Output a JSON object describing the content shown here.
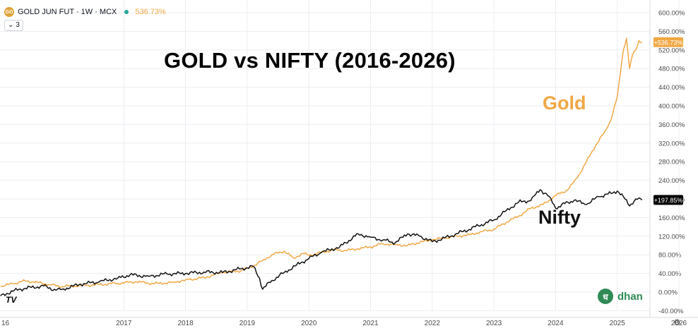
{
  "header": {
    "symbol": "GOLD JUN FUT · 1W · MCX",
    "change": "536.73%",
    "logo_text": "GO",
    "collapse_count": "3"
  },
  "colors": {
    "gold": "#f0a845",
    "nifty": "#131313",
    "grid": "#ebedf1",
    "axis_text": "#4a4a4a",
    "tag_gold": "#f0a845",
    "tag_nifty": "#000000",
    "brand_green": "#2f8a56"
  },
  "branding": {
    "tv_logo": "TV",
    "dhan_icon": "ध",
    "dhan_text": "dhan"
  },
  "chart_data": {
    "type": "line",
    "title": "GOLD vs NIFTY (2016-2026)",
    "x_tick_labels": [
      "16",
      "2017",
      "2018",
      "2019",
      "2020",
      "2021",
      "2022",
      "2023",
      "2024",
      "2025",
      "2026"
    ],
    "y_ticks": [
      -40,
      0,
      40,
      80,
      120,
      160,
      200,
      240,
      280,
      320,
      360,
      400,
      440,
      480,
      520,
      560,
      600
    ],
    "y_tick_labels": [
      "-40.00%",
      "0.00%",
      "40.00%",
      "80.00%",
      "120.00%",
      "160.00%",
      "200.00%",
      "240.00%",
      "280.00%",
      "320.00%",
      "360.00%",
      "400.00%",
      "440.00%",
      "480.00%",
      "520.00%",
      "560.00%",
      "600.00%"
    ],
    "ylim": [
      -50,
      610
    ],
    "xlim": [
      2016.0,
      2027.0
    ],
    "grid": true,
    "series": [
      {
        "name": "Gold",
        "last_label": "+536.73%",
        "x": [
          2016.0,
          2016.2,
          2016.4,
          2016.6,
          2016.8,
          2017.0,
          2017.3,
          2017.6,
          2017.9,
          2018.2,
          2018.5,
          2018.8,
          2019.0,
          2019.3,
          2019.6,
          2019.9,
          2020.1,
          2020.25,
          2020.4,
          2020.6,
          2020.75,
          2020.9,
          2021.0,
          2021.2,
          2021.4,
          2021.6,
          2021.8,
          2022.0,
          2022.2,
          2022.4,
          2022.6,
          2022.8,
          2023.0,
          2023.2,
          2023.4,
          2023.6,
          2023.8,
          2024.0,
          2024.2,
          2024.4,
          2024.6,
          2024.8,
          2025.0,
          2025.2,
          2025.35,
          2025.5,
          2025.65,
          2025.8,
          2025.9,
          2026.0,
          2026.05,
          2026.1,
          2026.15,
          2026.2,
          2026.25,
          2026.3,
          2026.35,
          2026.4
        ],
        "y": [
          12,
          18,
          24,
          21,
          16,
          12,
          14,
          16,
          19,
          22,
          18,
          21,
          26,
          31,
          42,
          46,
          56,
          68,
          80,
          88,
          73,
          83,
          79,
          85,
          91,
          89,
          93,
          97,
          104,
          102,
          100,
          107,
          112,
          116,
          120,
          123,
          130,
          135,
          150,
          163,
          180,
          188,
          207,
          220,
          245,
          280,
          315,
          345,
          370,
          420,
          470,
          520,
          545,
          480,
          510,
          520,
          540,
          536.73
        ]
      },
      {
        "name": "Nifty",
        "last_label": "+197.85%",
        "x": [
          2016.0,
          2016.1,
          2016.3,
          2016.5,
          2016.7,
          2016.9,
          2017.0,
          2017.3,
          2017.6,
          2017.9,
          2018.1,
          2018.4,
          2018.7,
          2019.0,
          2019.3,
          2019.6,
          2019.9,
          2020.1,
          2020.2,
          2020.25,
          2020.4,
          2020.6,
          2020.8,
          2021.0,
          2021.2,
          2021.5,
          2021.8,
          2022.0,
          2022.2,
          2022.4,
          2022.6,
          2022.8,
          2023.0,
          2023.2,
          2023.5,
          2023.8,
          2024.0,
          2024.2,
          2024.4,
          2024.6,
          2024.75,
          2024.9,
          2025.0,
          2025.15,
          2025.3,
          2025.5,
          2025.7,
          2025.9,
          2026.0,
          2026.1,
          2026.2,
          2026.3,
          2026.4
        ],
        "y": [
          -8,
          -3,
          6,
          10,
          13,
          4,
          6,
          17,
          22,
          30,
          37,
          34,
          39,
          40,
          43,
          42,
          50,
          55,
          30,
          6,
          25,
          42,
          58,
          72,
          85,
          97,
          125,
          118,
          112,
          106,
          125,
          120,
          108,
          116,
          130,
          145,
          155,
          175,
          193,
          197,
          220,
          205,
          180,
          190,
          197,
          188,
          205,
          212,
          217,
          205,
          185,
          200,
          197.85
        ]
      }
    ],
    "annotations": [
      {
        "text": "Gold"
      },
      {
        "text": "Nifty"
      }
    ]
  }
}
